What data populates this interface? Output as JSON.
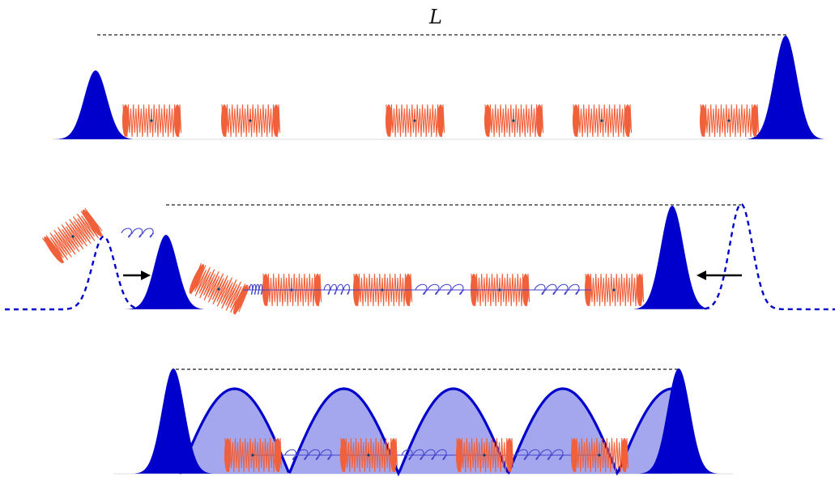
{
  "figure": {
    "length_label": "L"
  },
  "colors": {
    "pulse": "#0000cc",
    "well_fill": "#a4a7ee",
    "coil": "#f0603a",
    "spring": "#4444cc",
    "guide": "#222222",
    "arrow": "#000000"
  },
  "icons": {
    "coil": "ring-coil-icon",
    "spring": "spring-icon",
    "arrow": "arrow-icon"
  }
}
